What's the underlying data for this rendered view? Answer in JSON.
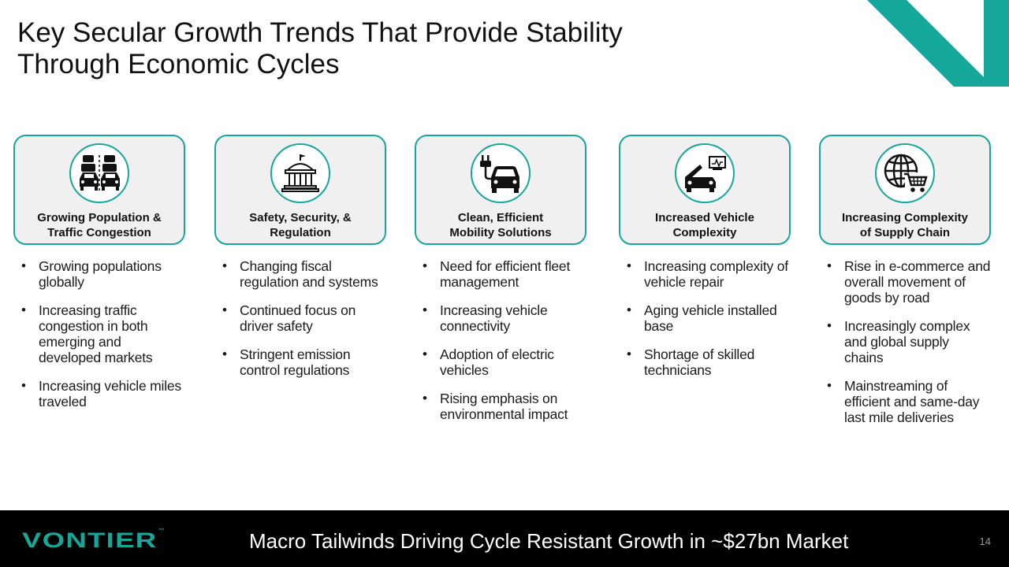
{
  "title": {
    "line1": "Key Secular Growth Trends That Provide Stability",
    "line2": "Through Economic Cycles"
  },
  "colors": {
    "accent": "#14a79a",
    "card_bg": "#f0f0f0",
    "footer_bg": "#000000"
  },
  "columns": [
    {
      "icon": "traffic-cars-icon",
      "label_line1": "Growing Population &",
      "label_line2": "Traffic Congestion",
      "bullets": [
        "Growing populations globally",
        "Increasing traffic congestion in both emerging and developed markets",
        "Increasing vehicle miles traveled"
      ]
    },
    {
      "icon": "government-building-icon",
      "label_line1": "Safety, Security, &",
      "label_line2": "Regulation",
      "bullets": [
        "Changing fiscal regulation and systems",
        "Continued focus on driver safety",
        "Stringent emission control regulations"
      ]
    },
    {
      "icon": "electric-car-plug-icon",
      "label_line1": "Clean, Efficient",
      "label_line2": "Mobility Solutions",
      "bullets": [
        "Need for efficient fleet management",
        "Increasing vehicle connectivity",
        "Adoption of electric vehicles",
        "Rising emphasis on environmental impact"
      ]
    },
    {
      "icon": "car-diagnostics-icon",
      "label_line1": "Increased Vehicle",
      "label_line2": "Complexity",
      "bullets": [
        "Increasing complexity of vehicle repair",
        "Aging vehicle installed base",
        "Shortage of skilled technicians"
      ]
    },
    {
      "icon": "globe-cart-icon",
      "label_line1": "Increasing Complexity",
      "label_line2": "of Supply Chain",
      "bullets": [
        "Rise in e-commerce and overall movement of goods by road",
        "Increasingly complex and global supply chains",
        "Mainstreaming of efficient and same-day last mile deliveries"
      ]
    }
  ],
  "footer": {
    "logo": "VONTIER",
    "logo_tm": "™",
    "tagline": "Macro Tailwinds Driving Cycle Resistant Growth in ~$27bn Market",
    "page_number": "14"
  }
}
